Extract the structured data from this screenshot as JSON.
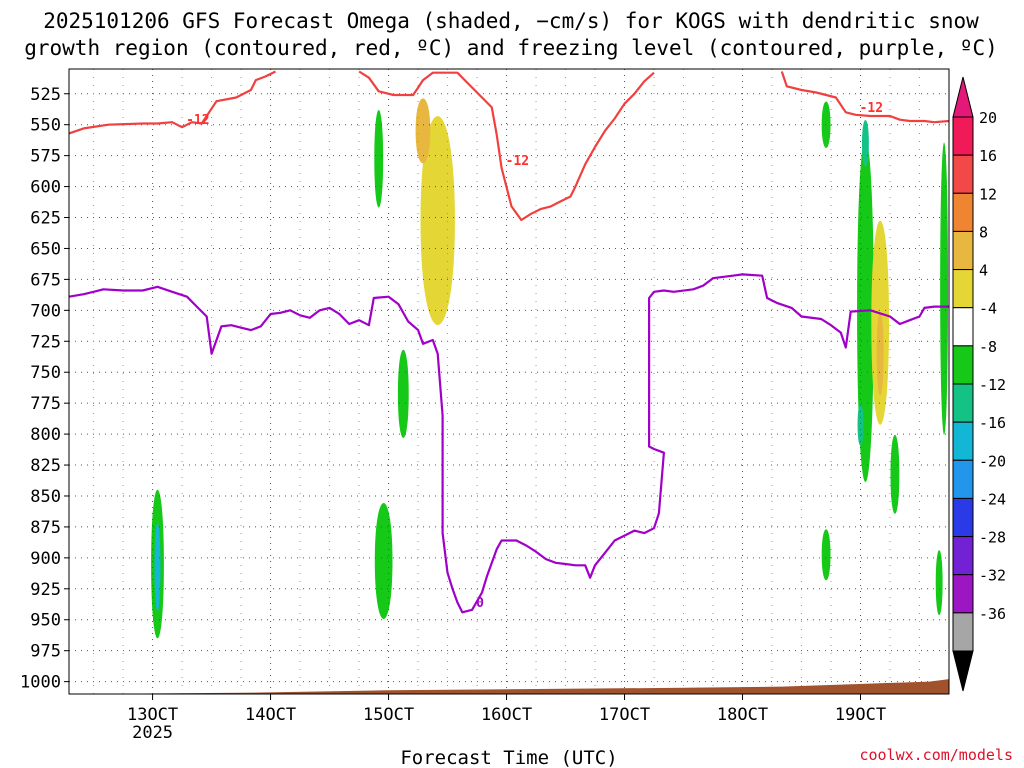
{
  "chart_data": {
    "type": "heatmap",
    "title_line1": "2025101206 GFS Forecast Omega (shaded, −cm/s) for KOGS with dendritic snow",
    "title_line2": "growth region (contoured, red, ºC) and freezing level (contoured, purple, ºC)",
    "xlabel": "Forecast Time (UTC)",
    "ylabel": "Pressure (hPa)",
    "ylim": [
      1010,
      505
    ],
    "y_ticks": [
      "525",
      "550",
      "575",
      "600",
      "625",
      "650",
      "675",
      "700",
      "725",
      "750",
      "775",
      "800",
      "825",
      "850",
      "875",
      "900",
      "925",
      "950",
      "975",
      "1000"
    ],
    "x_ticks": [
      {
        "label": "13OCT",
        "sub": "2025",
        "hour": 42
      },
      {
        "label": "14OCT",
        "sub": "",
        "hour": 66
      },
      {
        "label": "15OCT",
        "sub": "",
        "hour": 90
      },
      {
        "label": "16OCT",
        "sub": "",
        "hour": 114
      },
      {
        "label": "17OCT",
        "sub": "",
        "hour": 138
      },
      {
        "label": "18OCT",
        "sub": "",
        "hour": 162
      },
      {
        "label": "19OCT",
        "sub": "",
        "hour": 186
      }
    ],
    "xlim_hours": [
      25,
      204
    ],
    "colorbar": {
      "labels": [
        "20",
        "16",
        "12",
        "8",
        "4",
        "-4",
        "-8",
        "-12",
        "-16",
        "-20",
        "-24",
        "-28",
        "-32",
        "-36"
      ],
      "colors": [
        "#f01a58",
        "#f24848",
        "#ef8530",
        "#e7b740",
        "#e4d634",
        "#ffffff",
        "#16c818",
        "#14c286",
        "#14b6d6",
        "#2296ea",
        "#2a3ae6",
        "#7222d4",
        "#9c16c4",
        "#a6a6a6"
      ],
      "top_arrow_color": "#e41878",
      "bottom_arrow_color": "#000000"
    },
    "dgz_contour_label": "-12",
    "freezing_contour_label": "0",
    "terrain_color": "#a0522d",
    "contour_red": [
      {
        "name": "dgz-upper-left",
        "points": [
          [
            25,
            557
          ],
          [
            28,
            553
          ],
          [
            33,
            550
          ],
          [
            40,
            549
          ],
          [
            43,
            549
          ],
          [
            46,
            548
          ],
          [
            48,
            552
          ],
          [
            50,
            548
          ],
          [
            52,
            549
          ],
          [
            55,
            531
          ],
          [
            59,
            528
          ],
          [
            62,
            522
          ],
          [
            63,
            514
          ],
          [
            65,
            511
          ],
          [
            67,
            507
          ]
        ]
      },
      {
        "name": "dgz-trough",
        "points": [
          [
            84,
            507
          ],
          [
            86,
            512
          ],
          [
            88,
            523
          ],
          [
            91,
            526
          ],
          [
            95,
            526
          ],
          [
            96,
            520
          ],
          [
            97,
            514
          ],
          [
            99,
            508
          ],
          [
            104,
            508
          ],
          [
            106,
            516
          ],
          [
            109,
            528
          ],
          [
            111,
            536
          ],
          [
            112,
            558
          ],
          [
            113,
            585
          ],
          [
            115,
            616
          ],
          [
            117,
            627
          ],
          [
            119,
            622
          ],
          [
            121,
            618
          ],
          [
            123,
            616
          ],
          [
            125,
            612
          ],
          [
            127,
            608
          ],
          [
            128,
            600
          ],
          [
            130,
            582
          ],
          [
            132,
            568
          ],
          [
            134,
            555
          ],
          [
            136,
            545
          ],
          [
            138,
            533
          ],
          [
            140,
            525
          ],
          [
            142,
            515
          ],
          [
            144,
            508
          ]
        ]
      },
      {
        "name": "dgz-upper-right",
        "points": [
          [
            170,
            507
          ],
          [
            171,
            519
          ],
          [
            174,
            522
          ],
          [
            177,
            524
          ],
          [
            181,
            528
          ],
          [
            183,
            540
          ],
          [
            185,
            542
          ],
          [
            188,
            543
          ],
          [
            192,
            543
          ],
          [
            194,
            546
          ],
          [
            196,
            547
          ],
          [
            199,
            547
          ],
          [
            201,
            548
          ],
          [
            204,
            547
          ]
        ]
      }
    ],
    "contour_purple": [
      {
        "name": "freezing-level",
        "points": [
          [
            25,
            689
          ],
          [
            28,
            687
          ],
          [
            30,
            685
          ],
          [
            32,
            683
          ],
          [
            36,
            684
          ],
          [
            40,
            684
          ],
          [
            43,
            681
          ],
          [
            46,
            685
          ],
          [
            49,
            689
          ],
          [
            51,
            697
          ],
          [
            53,
            705
          ],
          [
            54,
            735
          ],
          [
            56,
            713
          ],
          [
            58,
            712
          ],
          [
            60,
            714
          ],
          [
            62,
            716
          ],
          [
            64,
            713
          ],
          [
            66,
            703
          ],
          [
            68,
            702
          ],
          [
            70,
            700
          ],
          [
            72,
            704
          ],
          [
            74,
            706
          ],
          [
            76,
            700
          ],
          [
            78,
            698
          ],
          [
            80,
            703
          ],
          [
            82,
            711
          ],
          [
            84,
            708
          ],
          [
            86,
            712
          ],
          [
            87,
            690
          ],
          [
            90,
            689
          ],
          [
            92,
            695
          ],
          [
            94,
            709
          ],
          [
            96,
            716
          ],
          [
            97,
            727
          ],
          [
            99,
            724
          ],
          [
            100,
            735
          ],
          [
            101,
            785
          ],
          [
            101,
            880
          ],
          [
            102,
            912
          ],
          [
            103,
            925
          ],
          [
            104,
            936
          ],
          [
            105,
            944
          ],
          [
            107,
            942
          ],
          [
            109,
            928
          ],
          [
            110,
            915
          ],
          [
            112,
            893
          ],
          [
            113,
            886
          ],
          [
            116,
            886
          ],
          [
            118,
            890
          ],
          [
            120,
            895
          ],
          [
            122,
            901
          ],
          [
            124,
            904
          ],
          [
            126,
            905
          ],
          [
            128,
            906
          ],
          [
            130,
            906
          ],
          [
            131,
            916
          ],
          [
            132,
            906
          ],
          [
            134,
            896
          ],
          [
            136,
            886
          ],
          [
            138,
            882
          ],
          [
            140,
            878
          ],
          [
            142,
            880
          ],
          [
            144,
            876
          ],
          [
            145,
            864
          ],
          [
            146,
            815
          ],
          [
            144,
            812
          ],
          [
            143,
            810
          ],
          [
            143,
            690
          ],
          [
            144,
            685
          ],
          [
            146,
            684
          ],
          [
            148,
            685
          ],
          [
            152,
            683
          ],
          [
            154,
            680
          ],
          [
            156,
            674
          ],
          [
            160,
            672
          ],
          [
            162,
            671
          ],
          [
            166,
            672
          ],
          [
            167,
            690
          ],
          [
            169,
            694
          ],
          [
            172,
            698
          ],
          [
            174,
            705
          ],
          [
            178,
            707
          ],
          [
            180,
            712
          ],
          [
            182,
            718
          ],
          [
            183,
            730
          ],
          [
            184,
            701
          ],
          [
            188,
            700
          ],
          [
            192,
            705
          ],
          [
            194,
            711
          ],
          [
            196,
            708
          ],
          [
            198,
            705
          ],
          [
            199,
            698
          ],
          [
            201,
            697
          ],
          [
            204,
            697
          ]
        ]
      }
    ],
    "features": [
      {
        "name": "green-updraft-lower-left",
        "value": -8,
        "hour": 43,
        "p_top": 825,
        "p_bot": 985,
        "half_width_h": 1.3
      },
      {
        "name": "cyan-core-lower-left",
        "value": -16,
        "hour": 43,
        "p_top": 860,
        "p_bot": 955,
        "half_width_h": 0.6
      },
      {
        "name": "green-updraft-153",
        "value": -8,
        "hour": 93,
        "p_top": 720,
        "p_bot": 815,
        "half_width_h": 1.1
      },
      {
        "name": "green-updraft-150",
        "value": -8,
        "hour": 89,
        "p_top": 840,
        "p_bot": 965,
        "half_width_h": 1.8
      },
      {
        "name": "green-updraft-upper-150",
        "value": -8,
        "hour": 88,
        "p_top": 525,
        "p_bot": 630,
        "half_width_h": 0.9
      },
      {
        "name": "green-updraft-187",
        "value": -8,
        "hour": 187,
        "p_top": 515,
        "p_bot": 885,
        "half_width_h": 1.7
      },
      {
        "name": "teal-core-187",
        "value": -12,
        "hour": 187,
        "p_top": 540,
        "p_bot": 590,
        "half_width_h": 0.7
      },
      {
        "name": "teal-core-186",
        "value": -12,
        "hour": 186,
        "p_top": 770,
        "p_bot": 815,
        "half_width_h": 0.6
      },
      {
        "name": "green-upper-180",
        "value": -8,
        "hour": 179,
        "p_top": 525,
        "p_bot": 575,
        "half_width_h": 0.9
      },
      {
        "name": "green-lower-180",
        "value": -8,
        "hour": 179,
        "p_top": 870,
        "p_bot": 925,
        "half_width_h": 0.9
      },
      {
        "name": "green-193",
        "value": -8,
        "hour": 193,
        "p_top": 790,
        "p_bot": 875,
        "half_width_h": 0.9
      },
      {
        "name": "green-edge-right",
        "value": -8,
        "hour": 203,
        "p_top": 525,
        "p_bot": 840,
        "half_width_h": 0.8
      },
      {
        "name": "green-right-bottom",
        "value": -8,
        "hour": 202,
        "p_top": 885,
        "p_bot": 955,
        "half_width_h": 0.7
      },
      {
        "name": "yellow-subsidence-upper",
        "value": 6,
        "hour": 100,
        "p_top": 515,
        "p_bot": 740,
        "half_width_h": 3.5
      },
      {
        "name": "orange-subsidence-upper",
        "value": 10,
        "hour": 97,
        "p_top": 520,
        "p_bot": 590,
        "half_width_h": 1.5
      },
      {
        "name": "yellow-subsidence-right",
        "value": 6,
        "hour": 190,
        "p_top": 600,
        "p_bot": 820,
        "half_width_h": 1.8
      },
      {
        "name": "orange-subsidence-right",
        "value": 10,
        "hour": 190,
        "p_top": 690,
        "p_bot": 780,
        "half_width_h": 0.7
      }
    ]
  },
  "watermark": "coolwx.com/models"
}
